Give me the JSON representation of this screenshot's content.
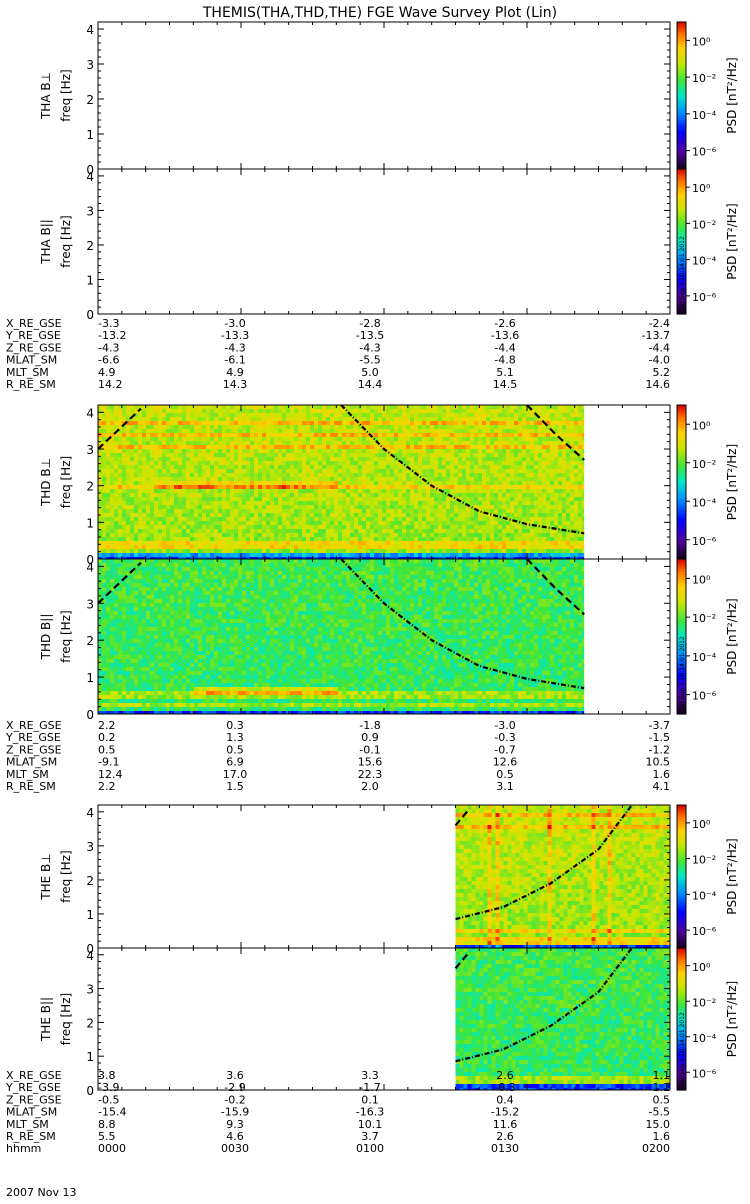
{
  "chart_data": {
    "type": "heatmap",
    "title": "THEMIS(THA,THD,THE) FGE Wave Survey Plot (Lin)",
    "ylabel_unit": "freq [Hz]",
    "ylim": [
      0,
      4.2
    ],
    "yticks": [
      "0",
      "1",
      "2",
      "3",
      "4"
    ],
    "xlim_minutes": [
      0,
      120
    ],
    "colorbar": {
      "label": "PSD [nT²/Hz]",
      "tick_labels": [
        "10⁰",
        "10⁻²",
        "10⁻⁴",
        "10⁻⁶"
      ],
      "range_log10": [
        -7,
        1
      ],
      "stamp": "Sat Sep  1 10:14:01 2012"
    },
    "panels": [
      {
        "id": "tha-bperp",
        "probe": "THA",
        "component": "B⊥",
        "ylabel": "THA B⊥",
        "data_start_min": null,
        "data_end_min": null
      },
      {
        "id": "tha-bpar",
        "probe": "THA",
        "component": "B||",
        "ylabel": "THA B||",
        "data_start_min": null,
        "data_end_min": null
      },
      {
        "id": "thd-bperp",
        "probe": "THD",
        "component": "B⊥",
        "ylabel": "THD B⊥",
        "data_start_min": 0,
        "data_end_min": 102,
        "bands": [
          0.15,
          0.3,
          0.45,
          2.0,
          3.1,
          3.4,
          3.7
        ],
        "cyclotron_curves": [
          [
            [
              0,
              3.0
            ],
            [
              9,
              4.1
            ]
          ],
          [
            [
              51,
              4.2
            ],
            [
              60,
              3.0
            ],
            [
              70,
              2.0
            ],
            [
              80,
              1.3
            ],
            [
              90,
              0.95
            ],
            [
              102,
              0.7
            ]
          ],
          [
            [
              90,
              4.2
            ],
            [
              96,
              3.4
            ],
            [
              102,
              2.7
            ]
          ]
        ]
      },
      {
        "id": "thd-bpar",
        "probe": "THD",
        "component": "B||",
        "ylabel": "THD B||",
        "data_start_min": 0,
        "data_end_min": 102,
        "bands": [
          0.25,
          0.45,
          0.6
        ],
        "cyclotron_curves": [
          [
            [
              0,
              3.0
            ],
            [
              9,
              4.1
            ]
          ],
          [
            [
              51,
              4.2
            ],
            [
              60,
              3.0
            ],
            [
              70,
              2.0
            ],
            [
              80,
              1.3
            ],
            [
              90,
              0.95
            ],
            [
              102,
              0.7
            ]
          ],
          [
            [
              90,
              4.2
            ],
            [
              96,
              3.4
            ],
            [
              102,
              2.7
            ]
          ]
        ]
      },
      {
        "id": "the-bperp",
        "probe": "THE",
        "component": "B⊥",
        "ylabel": "THE B⊥",
        "data_start_min": 75,
        "data_end_min": 120,
        "bands": [
          0.1,
          0.3,
          0.45,
          3.6,
          3.9
        ],
        "cyclotron_curves": [
          [
            [
              75,
              3.6
            ],
            [
              78,
              4.1
            ]
          ],
          [
            [
              75,
              0.85
            ],
            [
              85,
              1.2
            ],
            [
              95,
              1.9
            ],
            [
              105,
              2.9
            ],
            [
              112,
              4.2
            ]
          ]
        ]
      },
      {
        "id": "the-bpar",
        "probe": "THE",
        "component": "B||",
        "ylabel": "THE B||",
        "data_start_min": 75,
        "data_end_min": 120,
        "bands": [
          0.25,
          0.4
        ],
        "cyclotron_curves": [
          [
            [
              75,
              3.6
            ],
            [
              78,
              4.1
            ]
          ],
          [
            [
              75,
              0.85
            ],
            [
              85,
              1.2
            ],
            [
              95,
              1.9
            ],
            [
              105,
              2.9
            ],
            [
              112,
              4.2
            ]
          ]
        ]
      }
    ],
    "ephemeris": [
      {
        "probe": "THA",
        "rows": [
          {
            "label": "X_RE_GSE",
            "values": [
              "-3.3",
              "-3.0",
              "-2.8",
              "-2.6",
              "-2.4"
            ]
          },
          {
            "label": "Y_RE_GSE",
            "values": [
              "-13.2",
              "-13.3",
              "-13.5",
              "-13.6",
              "-13.7"
            ]
          },
          {
            "label": "Z_RE_GSE",
            "values": [
              "-4.3",
              "-4.3",
              "-4.3",
              "-4.4",
              "-4.4"
            ]
          },
          {
            "label": "MLAT_SM",
            "values": [
              "-6.6",
              "-6.1",
              "-5.5",
              "-4.8",
              "-4.0"
            ]
          },
          {
            "label": "MLT_SM",
            "values": [
              "4.9",
              "4.9",
              "5.0",
              "5.1",
              "5.2"
            ]
          },
          {
            "label": "R_RE_SM",
            "values": [
              "14.2",
              "14.3",
              "14.4",
              "14.5",
              "14.6"
            ]
          }
        ]
      },
      {
        "probe": "THD",
        "rows": [
          {
            "label": "X_RE_GSE",
            "values": [
              "2.2",
              "0.3",
              "-1.8",
              "-3.0",
              "-3.7"
            ]
          },
          {
            "label": "Y_RE_GSE",
            "values": [
              "0.2",
              "1.3",
              "0.9",
              "-0.3",
              "-1.5"
            ]
          },
          {
            "label": "Z_RE_GSE",
            "values": [
              "0.5",
              "0.5",
              "-0.1",
              "-0.7",
              "-1.2"
            ]
          },
          {
            "label": "MLAT_SM",
            "values": [
              "-9.1",
              "6.9",
              "15.6",
              "12.6",
              "10.5"
            ]
          },
          {
            "label": "MLT_SM",
            "values": [
              "12.4",
              "17.0",
              "22.3",
              "0.5",
              "1.6"
            ]
          },
          {
            "label": "R_RE_SM",
            "values": [
              "2.2",
              "1.5",
              "2.0",
              "3.1",
              "4.1"
            ]
          }
        ]
      },
      {
        "probe": "THE",
        "rows": [
          {
            "label": "X_RE_GSE",
            "values": [
              "3.8",
              "3.6",
              "3.3",
              "2.6",
              "1.1"
            ]
          },
          {
            "label": "Y_RE_GSE",
            "values": [
              "-3.9",
              "-2.9",
              "-1.7",
              "-0.3",
              "1.1"
            ]
          },
          {
            "label": "Z_RE_GSE",
            "values": [
              "-0.5",
              "-0.2",
              "0.1",
              "0.4",
              "0.5"
            ]
          },
          {
            "label": "MLAT_SM",
            "values": [
              "-15.4",
              "-15.9",
              "-16.3",
              "-15.2",
              "-5.5"
            ]
          },
          {
            "label": "MLT_SM",
            "values": [
              "8.8",
              "9.3",
              "10.1",
              "11.6",
              "15.0"
            ]
          },
          {
            "label": "R_RE_SM",
            "values": [
              "5.5",
              "4.6",
              "3.7",
              "2.6",
              "1.6"
            ]
          },
          {
            "label": "hhmm",
            "values": [
              "0000",
              "0030",
              "0100",
              "0130",
              "0200"
            ]
          }
        ]
      }
    ],
    "date_label": "2007 Nov 13"
  }
}
